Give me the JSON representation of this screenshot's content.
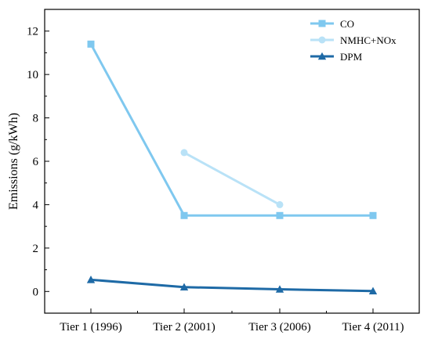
{
  "chart_data": {
    "type": "line",
    "categories": [
      "Tier 1 (1996)",
      "Tier 2 (2001)",
      "Tier 3 (2006)",
      "Tier 4 (2011)"
    ],
    "ylabel": "Emissions (g/kWh)",
    "ylim": [
      -1,
      13
    ],
    "yticks": [
      0,
      2,
      4,
      6,
      8,
      10,
      12
    ],
    "legend_position": "top-right",
    "series": [
      {
        "name": "CO",
        "values": [
          11.4,
          3.5,
          3.5,
          3.5
        ],
        "color": "#7fc8ef",
        "marker": "square"
      },
      {
        "name": "NMHC+NOx",
        "values": [
          null,
          6.4,
          4.0,
          null
        ],
        "color": "#b9e2f7",
        "marker": "circle"
      },
      {
        "name": "DPM",
        "values": [
          0.54,
          0.2,
          0.1,
          0.02
        ],
        "color": "#1e6aa6",
        "marker": "triangle"
      }
    ]
  }
}
